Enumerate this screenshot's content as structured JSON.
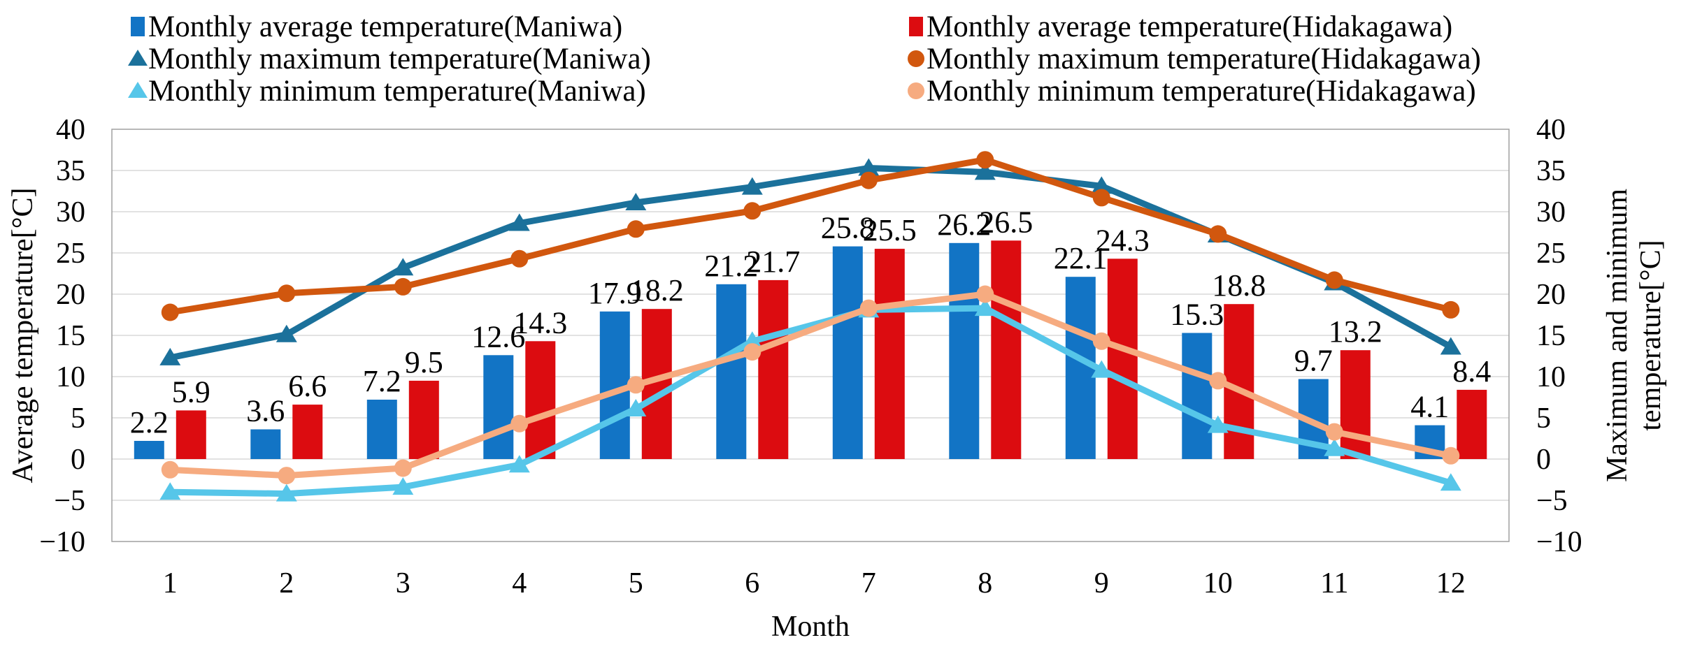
{
  "figure": {
    "kind": "combo temperature chart",
    "background": "#ffffff"
  },
  "legend": {
    "columns": [
      {
        "items": [
          {
            "label": "Monthly average temperature(Maniwa)",
            "marker": "square",
            "series": "avg_maniwa"
          },
          {
            "label": "Monthly maximum temperature(Maniwa)",
            "marker": "triangle",
            "series": "max_maniwa"
          },
          {
            "label": "Monthly minimum temperature(Maniwa)",
            "marker": "triangle",
            "series": "min_maniwa"
          }
        ]
      },
      {
        "items": [
          {
            "label": "Monthly average temperature(Hidakagawa)",
            "marker": "square",
            "series": "avg_hidakagawa"
          },
          {
            "label": "Monthly maximum temperature(Hidakagawa)",
            "marker": "circle",
            "series": "max_hidakagawa"
          },
          {
            "label": "Monthly minimum temperature(Hidakagawa)",
            "marker": "circle",
            "series": "min_hidakagawa"
          }
        ]
      }
    ]
  },
  "chart_data": {
    "type": "bar+line combo, dual y-axes",
    "categories": [
      "1",
      "2",
      "3",
      "4",
      "5",
      "6",
      "7",
      "8",
      "9",
      "10",
      "11",
      "12"
    ],
    "x_axis": {
      "title": "Month"
    },
    "left_axis": {
      "title": "Average temperature[°C]",
      "ticks": [
        "40",
        "35",
        "30",
        "25",
        "20",
        "15",
        "10",
        "5",
        "0",
        "−5",
        "−10"
      ]
    },
    "right_axis": {
      "title_lines": [
        "Maximum and minimum",
        "temperature[°C]"
      ],
      "ticks": [
        "40",
        "35",
        "30",
        "25",
        "20",
        "15",
        "10",
        "5",
        "0",
        "−5",
        "−10"
      ]
    },
    "ylim": [
      -10,
      40
    ],
    "tick_step": 5,
    "grid": true,
    "bar_series": [
      {
        "id": "avg_maniwa",
        "name": "Monthly average temperature(Maniwa)",
        "color": "#1274C5",
        "values": [
          2.2,
          3.6,
          7.2,
          12.6,
          17.9,
          21.2,
          25.8,
          26.2,
          22.1,
          15.3,
          9.7,
          4.1
        ],
        "labels": [
          "2.2",
          "3.6",
          "7.2",
          "12.6",
          "17.9",
          "21.2",
          "25.8",
          "26.2",
          "22.1",
          "15.3",
          "9.7",
          "4.1"
        ]
      },
      {
        "id": "avg_hidakagawa",
        "name": "Monthly average temperature(Hidakagawa)",
        "color": "#DC0C10",
        "values": [
          5.9,
          6.6,
          9.5,
          14.3,
          18.2,
          21.7,
          25.5,
          26.5,
          24.3,
          18.8,
          13.2,
          8.4
        ],
        "labels": [
          "5.9",
          "6.6",
          "9.5",
          "14.3",
          "18.2",
          "21.7",
          "25.5",
          "26.5",
          "24.3",
          "18.8",
          "13.2",
          "8.4"
        ]
      }
    ],
    "line_series": [
      {
        "id": "max_maniwa",
        "name": "Monthly maximum temperature(Maniwa)",
        "color": "#1B719B",
        "marker": "triangle",
        "values": [
          12.3,
          15.1,
          23.2,
          28.6,
          31.1,
          33.0,
          35.3,
          34.8,
          33.1,
          27.2,
          21.4,
          13.6
        ]
      },
      {
        "id": "max_hidakagawa",
        "name": "Monthly maximum temperature(Hidakagawa)",
        "color": "#D1570E",
        "marker": "circle",
        "values": [
          17.8,
          20.1,
          20.9,
          24.3,
          27.9,
          30.1,
          33.8,
          36.3,
          31.7,
          27.3,
          21.7,
          18.1
        ]
      },
      {
        "id": "min_maniwa",
        "name": "Monthly minimum temperature(Maniwa)",
        "color": "#56C6E9",
        "marker": "triangle",
        "values": [
          -4.0,
          -4.2,
          -3.4,
          -0.7,
          6.1,
          14.3,
          18.1,
          18.3,
          10.8,
          4.1,
          1.3,
          -2.9
        ]
      },
      {
        "id": "min_hidakagawa",
        "name": "Monthly minimum temperature(Hidakagawa)",
        "color": "#F6AB80",
        "marker": "circle",
        "values": [
          -1.3,
          -2.0,
          -1.1,
          4.3,
          9.0,
          13.0,
          18.3,
          20.0,
          14.3,
          9.5,
          3.3,
          0.4
        ]
      }
    ],
    "colors": {
      "grid": "#D9D9D9",
      "border": "#A0A0A0",
      "text": "#000000"
    }
  }
}
